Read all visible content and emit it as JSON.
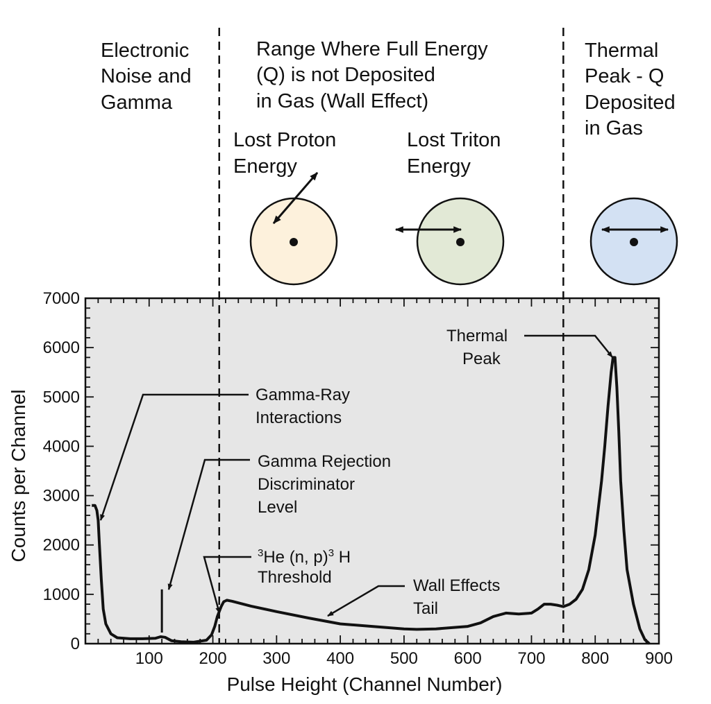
{
  "header": {
    "left_lines": [
      "Electronic",
      "Noise and",
      "Gamma"
    ],
    "middle_lines": [
      "Range Where Full Energy",
      "(Q) is not Deposited",
      "in Gas (Wall Effect)"
    ],
    "right_lines": [
      "Thermal",
      "Peak - Q",
      "Deposited",
      "in Gas"
    ],
    "proton_lines": [
      "Lost Proton",
      "Energy"
    ],
    "triton_lines": [
      "Lost Triton",
      "Energy"
    ]
  },
  "colors": {
    "plot_bg": "#e6e6e6",
    "proton_circle": "#fdf1dc",
    "triton_circle": "#e2e9d6",
    "thermal_circle": "#d3e1f3",
    "line": "#111111"
  },
  "annotations": {
    "gamma_ray_lines": [
      "Gamma-Ray",
      "Interactions"
    ],
    "gamma_rejection_lines": [
      "Gamma Rejection",
      "Discriminator",
      "Level"
    ],
    "threshold_sup1": "3",
    "threshold_main": "He (n, p)",
    "threshold_sup2": "3",
    "threshold_end": " H",
    "threshold_line2": "Threshold",
    "wall_lines": [
      "Wall Effects",
      "Tail"
    ],
    "thermal_lines": [
      "Thermal",
      "Peak"
    ]
  },
  "chart_data": {
    "type": "line",
    "title": "",
    "xlabel": "Pulse Height (Channel Number)",
    "ylabel": "Counts per Channel",
    "xlim": [
      0,
      900
    ],
    "ylim": [
      0,
      7000
    ],
    "xticks": [
      100,
      200,
      300,
      400,
      500,
      600,
      700,
      800,
      900
    ],
    "yticks": [
      0,
      1000,
      2000,
      3000,
      4000,
      5000,
      6000,
      7000
    ],
    "vlines": [
      210,
      750
    ],
    "discriminator_level": 120,
    "series": [
      {
        "x": [
          10,
          15,
          18,
          20,
          22,
          25,
          28,
          32,
          40,
          50,
          70,
          90,
          110,
          118,
          125,
          135,
          150,
          170,
          190,
          198,
          203,
          207,
          210,
          213,
          217,
          222,
          230,
          260,
          300,
          350,
          400,
          450,
          500,
          520,
          550,
          600,
          620,
          640,
          660,
          680,
          700,
          710,
          720,
          730,
          740,
          750,
          760,
          770,
          780,
          790,
          800,
          810,
          815,
          820,
          825,
          828,
          831,
          834,
          837,
          840,
          845,
          850,
          860,
          870,
          878,
          885
        ],
        "y": [
          2800,
          2800,
          2700,
          2500,
          2000,
          1300,
          700,
          400,
          200,
          120,
          100,
          100,
          110,
          140,
          130,
          60,
          40,
          30,
          70,
          180,
          350,
          550,
          650,
          750,
          850,
          880,
          860,
          760,
          650,
          520,
          400,
          350,
          300,
          290,
          300,
          350,
          420,
          550,
          620,
          600,
          620,
          700,
          800,
          800,
          780,
          750,
          800,
          900,
          1100,
          1500,
          2200,
          3300,
          4000,
          4800,
          5500,
          5800,
          5800,
          5200,
          4300,
          3300,
          2300,
          1500,
          800,
          300,
          80,
          0
        ]
      }
    ]
  }
}
